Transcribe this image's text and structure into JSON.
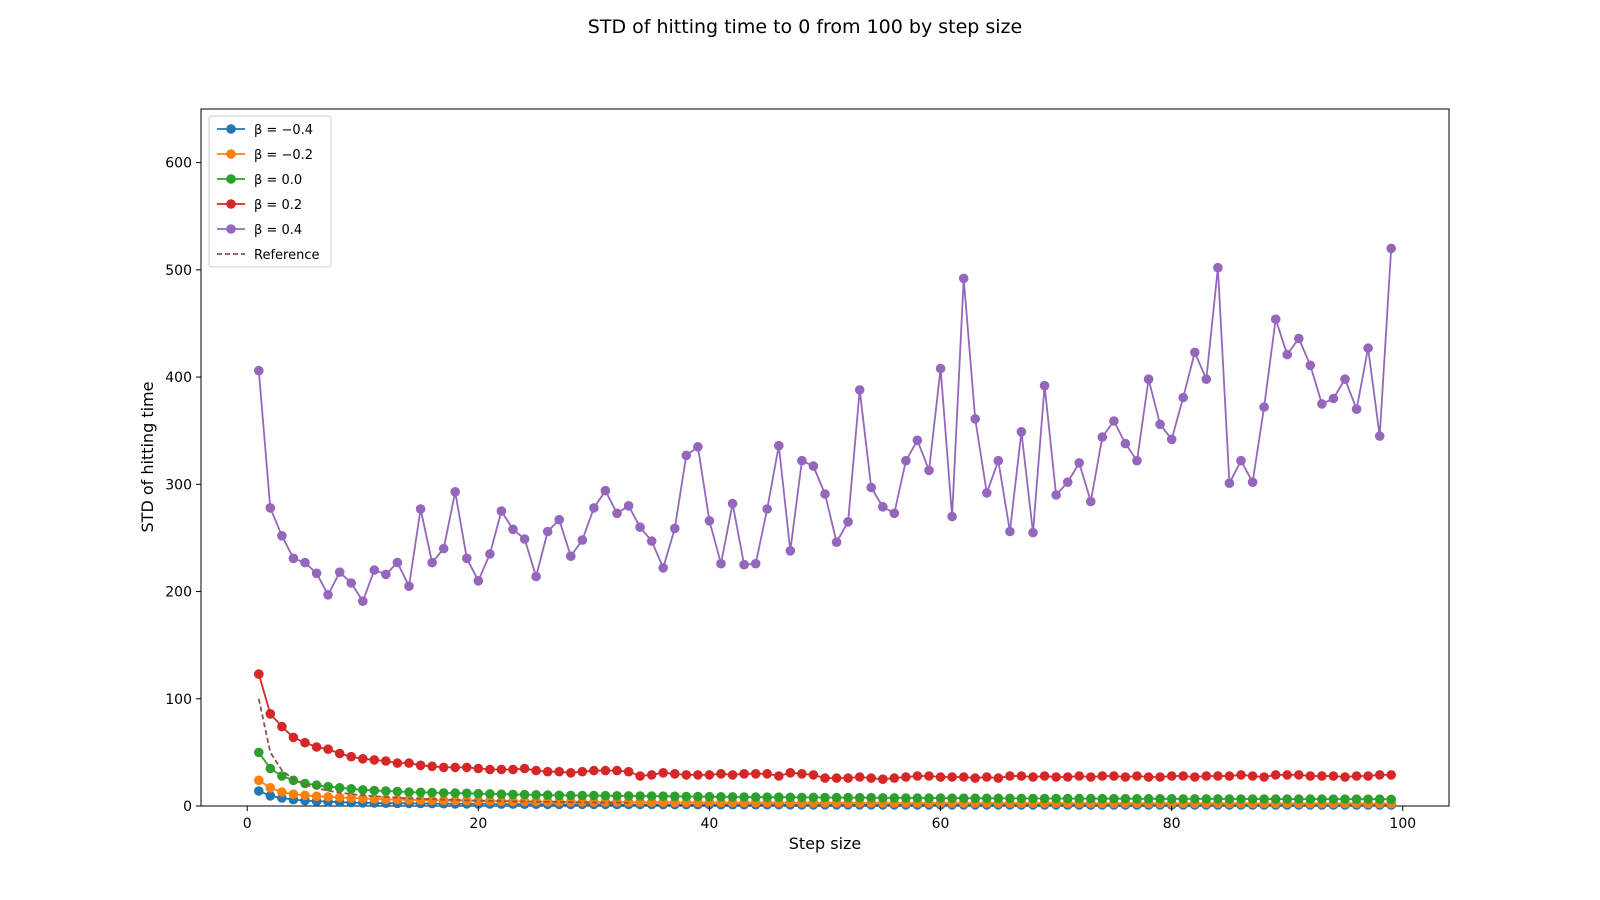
{
  "chart_data": {
    "type": "line",
    "title": "STD of hitting time to 0 from 100 by step size",
    "xlabel": "Step size",
    "ylabel": "STD of hitting time",
    "xlim": [
      -4,
      104
    ],
    "ylim": [
      0,
      650
    ],
    "xticks": [
      0,
      20,
      40,
      60,
      80,
      100
    ],
    "yticks": [
      0,
      100,
      200,
      300,
      400,
      500,
      600
    ],
    "grid": false,
    "legend_position": "upper left",
    "x": [
      1,
      2,
      3,
      4,
      5,
      6,
      7,
      8,
      9,
      10,
      11,
      12,
      13,
      14,
      15,
      16,
      17,
      18,
      19,
      20,
      21,
      22,
      23,
      24,
      25,
      26,
      27,
      28,
      29,
      30,
      31,
      32,
      33,
      34,
      35,
      36,
      37,
      38,
      39,
      40,
      41,
      42,
      43,
      44,
      45,
      46,
      47,
      48,
      49,
      50,
      51,
      52,
      53,
      54,
      55,
      56,
      57,
      58,
      59,
      60,
      61,
      62,
      63,
      64,
      65,
      66,
      67,
      68,
      69,
      70,
      71,
      72,
      73,
      74,
      75,
      76,
      77,
      78,
      79,
      80,
      81,
      82,
      83,
      84,
      85,
      86,
      87,
      88,
      89,
      90,
      91,
      92,
      93,
      94,
      95,
      96,
      97,
      98,
      99
    ],
    "series": [
      {
        "name": "β = −0.4",
        "label_display": "β = −0.4",
        "color": "#1f77b4",
        "style": "line-marker",
        "values": [
          14,
          9.5,
          7.5,
          6,
          5,
          4.5,
          4,
          3.5,
          3.2,
          3,
          2.8,
          2.6,
          2.5,
          2.4,
          2.3,
          2.2,
          2.1,
          2,
          2,
          1.9,
          1.9,
          1.8,
          1.8,
          1.7,
          1.7,
          1.6,
          1.6,
          1.6,
          1.5,
          1.5,
          1.5,
          1.4,
          1.4,
          1.4,
          1.4,
          1.3,
          1.3,
          1.3,
          1.3,
          1.3,
          1.2,
          1.2,
          1.2,
          1.2,
          1.2,
          1.2,
          1.1,
          1.1,
          1.1,
          1.1,
          1.1,
          1.1,
          1.1,
          1.1,
          1,
          1,
          1,
          1,
          1,
          1,
          1,
          1,
          1,
          1,
          1,
          1,
          1,
          1,
          1,
          1,
          0.9,
          0.9,
          0.9,
          0.9,
          0.9,
          0.9,
          0.9,
          0.9,
          0.9,
          0.9,
          0.9,
          0.9,
          0.9,
          0.9,
          0.9,
          0.9,
          0.9,
          0.9,
          0.9,
          0.9,
          0.9,
          0.9,
          0.9,
          0.9,
          0.9,
          0.9,
          0.9,
          0.9,
          0.9
        ]
      },
      {
        "name": "β = −0.2",
        "label_display": "β = −0.2",
        "color": "#ff7f0e",
        "style": "line-marker",
        "values": [
          24,
          17,
          13,
          11,
          10,
          9,
          8.5,
          8,
          7.5,
          7,
          6.5,
          6.2,
          6,
          5.8,
          5.5,
          5.3,
          5.1,
          5,
          4.9,
          4.7,
          4.6,
          4.5,
          4.4,
          4.3,
          4.2,
          4.1,
          4,
          3.9,
          3.9,
          3.8,
          3.7,
          3.7,
          3.6,
          3.6,
          3.5,
          3.5,
          3.4,
          3.4,
          3.3,
          3.3,
          3.3,
          3.2,
          3.2,
          3.2,
          3.1,
          3.1,
          3.1,
          3,
          3,
          3,
          3,
          2.9,
          2.9,
          2.9,
          2.9,
          2.8,
          2.8,
          2.8,
          2.8,
          2.8,
          2.7,
          2.7,
          2.7,
          2.7,
          2.7,
          2.6,
          2.6,
          2.6,
          2.6,
          2.6,
          2.6,
          2.5,
          2.5,
          2.5,
          2.5,
          2.5,
          2.5,
          2.5,
          2.4,
          2.4,
          2.4,
          2.4,
          2.4,
          2.4,
          2.4,
          2.4,
          2.3,
          2.3,
          2.3,
          2.3,
          2.3,
          2.3,
          2.3,
          2.3,
          2.3,
          2.3,
          2.2,
          2.2,
          2.2
        ]
      },
      {
        "name": "β = 0.0",
        "label_display": "β = 0.0",
        "color": "#2ca02c",
        "style": "line-marker",
        "values": [
          50,
          35,
          28,
          24,
          21,
          19.5,
          18,
          17,
          16,
          15,
          14.5,
          14,
          13.5,
          13,
          12.8,
          12.5,
          12.2,
          12,
          11.8,
          11.5,
          11.3,
          11,
          10.8,
          10.6,
          10.4,
          10.2,
          10,
          9.9,
          9.8,
          9.7,
          9.6,
          9.5,
          9.4,
          9.3,
          9.2,
          9.1,
          9,
          8.9,
          8.8,
          8.7,
          8.6,
          8.5,
          8.4,
          8.3,
          8.2,
          8.2,
          8.1,
          8,
          8,
          7.9,
          7.8,
          7.8,
          7.7,
          7.7,
          7.6,
          7.6,
          7.5,
          7.5,
          7.4,
          7.4,
          7.3,
          7.3,
          7.2,
          7.2,
          7.2,
          7.1,
          7.1,
          7,
          7,
          7,
          6.9,
          6.9,
          6.9,
          6.8,
          6.8,
          6.8,
          6.7,
          6.7,
          6.7,
          6.7,
          6.6,
          6.6,
          6.6,
          6.6,
          6.5,
          6.5,
          6.5,
          6.5,
          6.4,
          6.4,
          6.4,
          6.4,
          6.4,
          6.3,
          6.3,
          6.3,
          6.3,
          6.3,
          6.2
        ]
      },
      {
        "name": "β = 0.2",
        "label_display": "β = 0.2",
        "color": "#d62728",
        "style": "line-marker",
        "values": [
          123,
          86,
          74,
          64,
          59,
          55,
          53,
          49,
          46,
          44,
          43,
          42,
          40,
          40,
          38,
          37,
          36,
          36,
          36,
          35,
          34,
          34,
          34,
          35,
          33,
          32,
          32,
          31,
          32,
          33,
          33,
          33,
          32,
          28,
          29,
          31,
          30,
          29,
          29,
          29,
          30,
          29,
          30,
          30,
          30,
          28,
          31,
          30,
          29,
          26,
          26,
          26,
          27,
          26,
          25,
          26,
          27,
          28,
          28,
          27,
          27,
          27,
          26,
          27,
          26,
          28,
          28,
          27,
          28,
          27,
          27,
          28,
          27,
          28,
          28,
          27,
          28,
          27,
          27,
          28,
          28,
          27,
          28,
          28,
          28,
          29,
          28,
          27,
          29,
          29,
          29,
          28,
          28,
          28,
          27,
          28,
          28,
          29,
          29
        ]
      },
      {
        "name": "β = 0.4",
        "label_display": "β = 0.4",
        "color": "#9467bd",
        "style": "line-marker",
        "values": [
          406,
          278,
          252,
          231,
          227,
          217,
          197,
          218,
          208,
          191,
          220,
          216,
          227,
          205,
          277,
          227,
          240,
          293,
          231,
          210,
          235,
          275,
          258,
          249,
          214,
          256,
          267,
          233,
          248,
          278,
          294,
          273,
          280,
          260,
          247,
          222,
          259,
          327,
          335,
          266,
          226,
          282,
          225,
          226,
          277,
          336,
          238,
          322,
          317,
          291,
          246,
          265,
          388,
          297,
          279,
          273,
          322,
          341,
          313,
          408,
          270,
          492,
          361,
          292,
          322,
          256,
          349,
          255,
          392,
          290,
          302,
          320,
          284,
          344,
          359,
          338,
          322,
          398,
          356,
          342,
          381,
          423,
          398,
          502,
          301,
          322,
          302,
          372,
          454,
          421,
          436,
          411,
          375,
          380,
          398,
          370,
          427,
          345,
          520
        ]
      },
      {
        "name": "Reference",
        "label_display": "Reference",
        "color": "#8c564b",
        "style": "dashed",
        "values": [
          100,
          50,
          33.3,
          25,
          20,
          16.7,
          14.3,
          12.5,
          11.1,
          10,
          9.1,
          8.3,
          7.7,
          7.1,
          6.7,
          6.3,
          5.9,
          5.6,
          5.3,
          5,
          4.8,
          4.5,
          4.3,
          4.2,
          4,
          3.8,
          3.7,
          3.6,
          3.4,
          3.3,
          3.2,
          3.1,
          3,
          2.9,
          2.9,
          2.8,
          2.7,
          2.6,
          2.6,
          2.5,
          2.4,
          2.4,
          2.3,
          2.3,
          2.2,
          2.2,
          2.1,
          2.1,
          2,
          2,
          2,
          1.9,
          1.9,
          1.9,
          1.8,
          1.8,
          1.8,
          1.7,
          1.7,
          1.7,
          1.6,
          1.6,
          1.6,
          1.6,
          1.5,
          1.5,
          1.5,
          1.5,
          1.4,
          1.4,
          1.4,
          1.4,
          1.4,
          1.4,
          1.3,
          1.3,
          1.3,
          1.3,
          1.3,
          1.3,
          1.2,
          1.2,
          1.2,
          1.2,
          1.2,
          1.2,
          1.1,
          1.1,
          1.1,
          1.1,
          1.1,
          1.1,
          1.1,
          1.1,
          1.1,
          1,
          1,
          1,
          1
        ]
      }
    ]
  }
}
